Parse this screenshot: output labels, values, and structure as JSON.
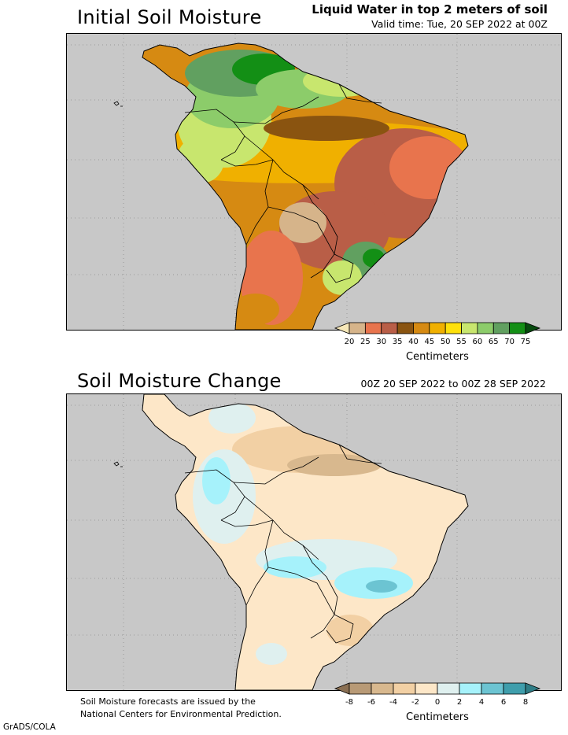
{
  "panel1": {
    "title": "Initial Soil Moisture",
    "subtitle_line1": "Liquid Water in top 2 meters of soil",
    "subtitle_line2": "Valid time: Tue, 20 SEP 2022 at 00Z",
    "colorbar": {
      "labels": [
        "20",
        "25",
        "30",
        "35",
        "40",
        "45",
        "50",
        "55",
        "60",
        "65",
        "70",
        "75"
      ],
      "colors": [
        "#f6e7b8",
        "#d6b48a",
        "#e8744d",
        "#b95e47",
        "#8a5410",
        "#d68a12",
        "#f0b000",
        "#fee10b",
        "#c8e66e",
        "#8ccc6a",
        "#61a060",
        "#138f15",
        "#074a0e"
      ],
      "units": "Centimeters"
    }
  },
  "panel2": {
    "title": "Soil Moisture Change",
    "subtitle": "00Z 20 SEP 2022 to 00Z 28 SEP 2022",
    "colorbar": {
      "labels": [
        "-8",
        "-6",
        "-4",
        "-2",
        "0",
        "2",
        "4",
        "6",
        "8"
      ],
      "colors": [
        "#8a6f52",
        "#b89a76",
        "#d8b88e",
        "#f2d0a4",
        "#fde7c8",
        "#dff0ef",
        "#a6f2fb",
        "#6cc4d2",
        "#3f9eac",
        "#2f7d86"
      ],
      "units": "Centimeters"
    }
  },
  "footer": {
    "note_line1": "Soil Moisture forecasts are issued by the",
    "note_line2": "National Centers for Environmental Prediction.",
    "credit": "GrADS/COLA"
  },
  "colors": {
    "ocean": "#c8c8c8",
    "border": "#000000"
  }
}
